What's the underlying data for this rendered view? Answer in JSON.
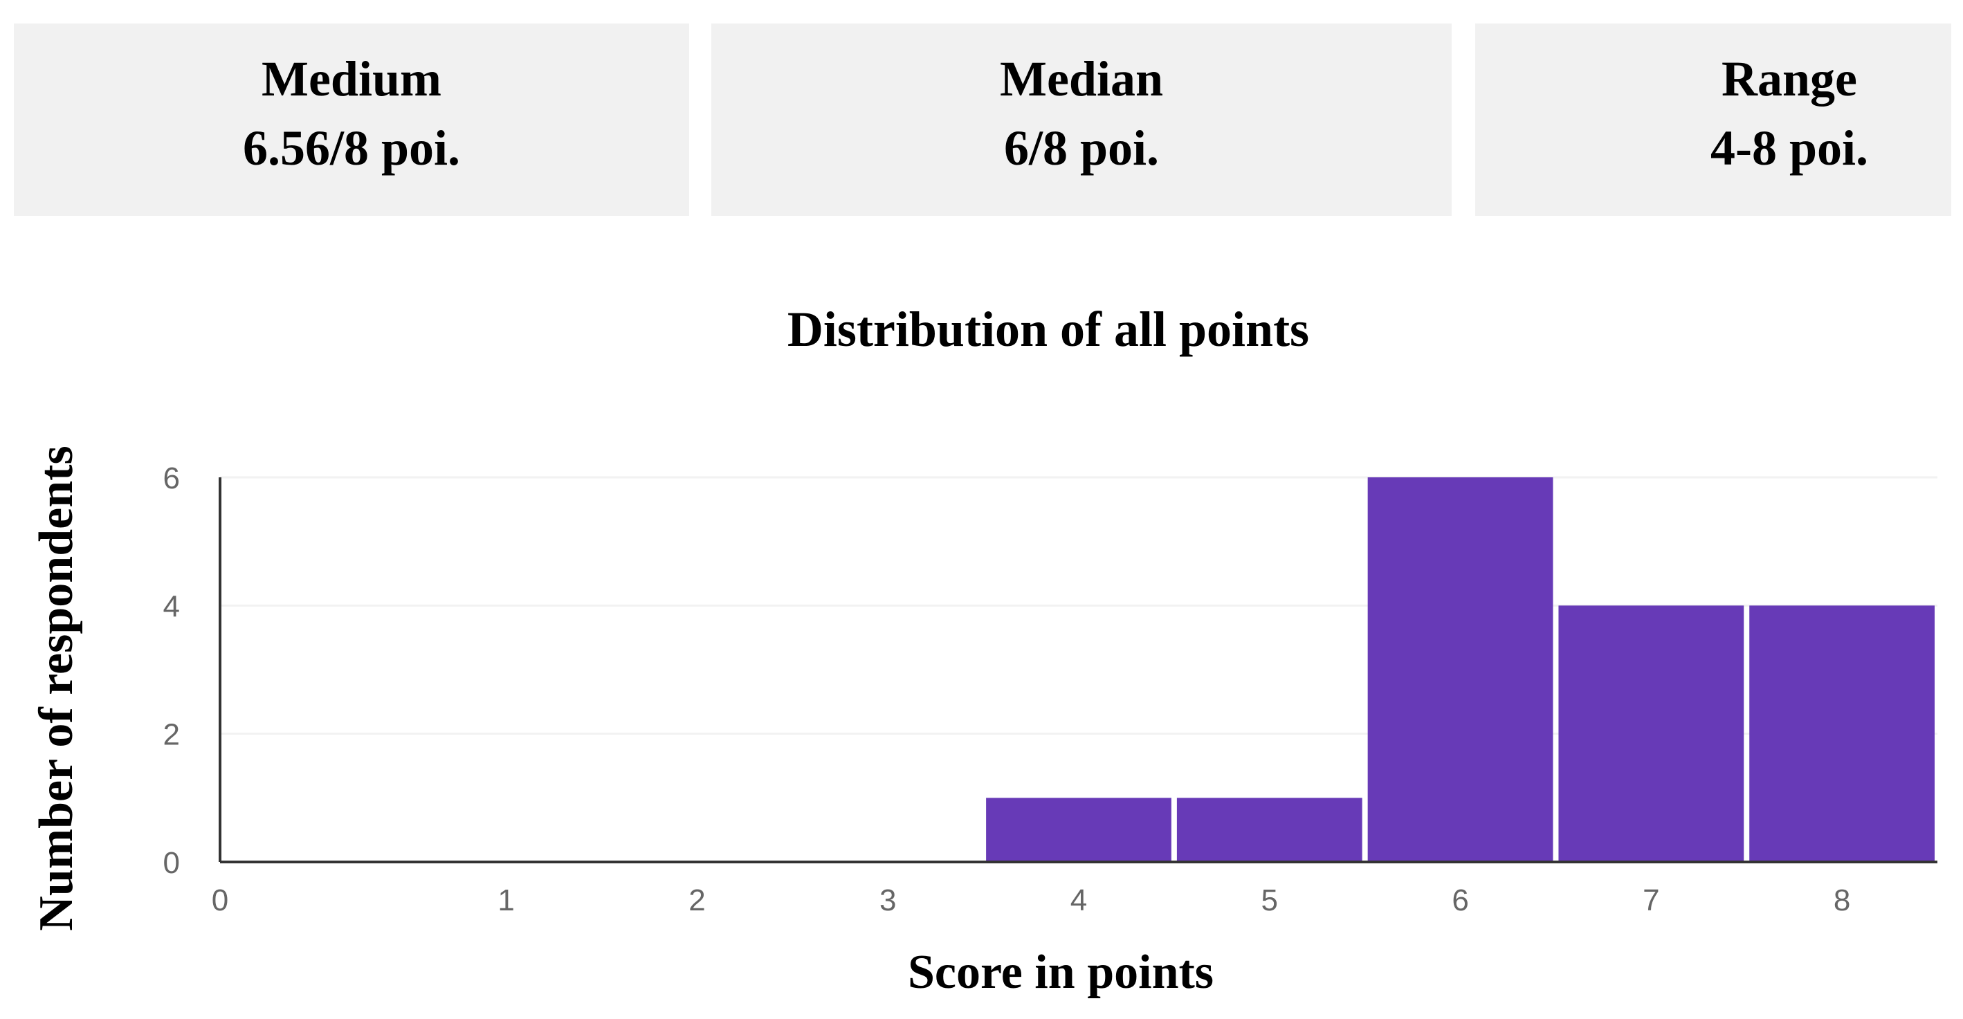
{
  "stats": {
    "mean": {
      "label": "Medium",
      "value": "6.56/8 poi."
    },
    "median": {
      "label": "Median",
      "value": "6/8 poi."
    },
    "range": {
      "label": "Range",
      "value": "4-8 poi."
    }
  },
  "colors": {
    "bar": "#673ab7",
    "card_background": "#f1f1f1",
    "gridline": "#f2f2f2",
    "axis": "#333333",
    "tick_text": "#666666"
  },
  "chart_data": {
    "type": "bar",
    "title": "Distribution of all points",
    "xlabel": "Score in points",
    "ylabel": "Number of respondents",
    "categories": [
      "0",
      "1",
      "2",
      "3",
      "4",
      "5",
      "6",
      "7",
      "8"
    ],
    "values": [
      0,
      0,
      0,
      0,
      1,
      1,
      6,
      4,
      4
    ],
    "x_ticks": [
      "0",
      "1",
      "2",
      "3",
      "4",
      "5",
      "6",
      "7",
      "8"
    ],
    "y_ticks": [
      "0",
      "2",
      "4",
      "6"
    ],
    "ylim": [
      0,
      6
    ],
    "grid": true,
    "legend": "none"
  }
}
